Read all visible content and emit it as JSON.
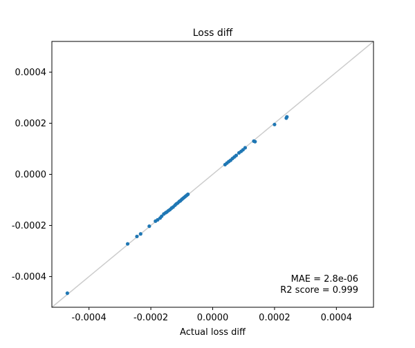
{
  "chart_data": {
    "type": "scatter",
    "title": "Loss diff",
    "xlabel": "Actual loss diff",
    "ylabel": "",
    "xlim": [
      -0.00052,
      0.00052
    ],
    "ylim": [
      -0.00052,
      0.00052
    ],
    "x_ticks": [
      "-0.0004",
      "-0.0002",
      "0.0000",
      "0.0002",
      "0.0004"
    ],
    "y_ticks": [
      "-0.0004",
      "-0.0002",
      "0.0000",
      "0.0002",
      "0.0004"
    ],
    "tick_values": [
      -0.0004,
      -0.0002,
      0.0,
      0.0002,
      0.0004
    ],
    "grid": false,
    "reference_line": {
      "x": [
        -0.00052,
        0.00052
      ],
      "y": [
        -0.00052,
        0.00052
      ],
      "color": "#cccccc"
    },
    "annotations": [
      "MAE = 2.8e-06",
      "R2 score = 0.999"
    ],
    "point_color": "#1f77b4",
    "series": [
      {
        "x": [
          -0.00047,
          -0.000275,
          -0.000245,
          -0.000233,
          -0.000205,
          -0.000185,
          -0.000178,
          -0.00017,
          -0.000165,
          -0.000158,
          -0.000152,
          -0.000148,
          -0.000143,
          -0.000138,
          -0.000133,
          -0.000128,
          -0.000122,
          -0.000118,
          -0.000113,
          -0.000108,
          -0.000104,
          -0.0001,
          -9.6e-05,
          -9.2e-05,
          -8.8e-05,
          -8.4e-05,
          -8e-05,
          4e-05,
          4.6e-05,
          5.2e-05,
          5.8e-05,
          6.4e-05,
          7e-05,
          7.6e-05,
          8.5e-05,
          9.2e-05,
          9.8e-05,
          0.000105,
          0.000133,
          0.000137,
          0.0002,
          0.000238,
          0.00024
        ],
        "y": [
          -0.000465,
          -0.000272,
          -0.000243,
          -0.000233,
          -0.000203,
          -0.000183,
          -0.000178,
          -0.000171,
          -0.000164,
          -0.000155,
          -0.00015,
          -0.000147,
          -0.000142,
          -0.000138,
          -0.000132,
          -0.000128,
          -0.000121,
          -0.000116,
          -0.000112,
          -0.000106,
          -0.000103,
          -9.8e-05,
          -9.4e-05,
          -9e-05,
          -8.6e-05,
          -8.2e-05,
          -7.8e-05,
          3.8e-05,
          4.4e-05,
          5e-05,
          5.5e-05,
          6.2e-05,
          6.8e-05,
          7.4e-05,
          8.4e-05,
          9e-05,
          9.6e-05,
          0.000104,
          0.00013,
          0.000128,
          0.000195,
          0.00022,
          0.000225
        ]
      }
    ]
  }
}
